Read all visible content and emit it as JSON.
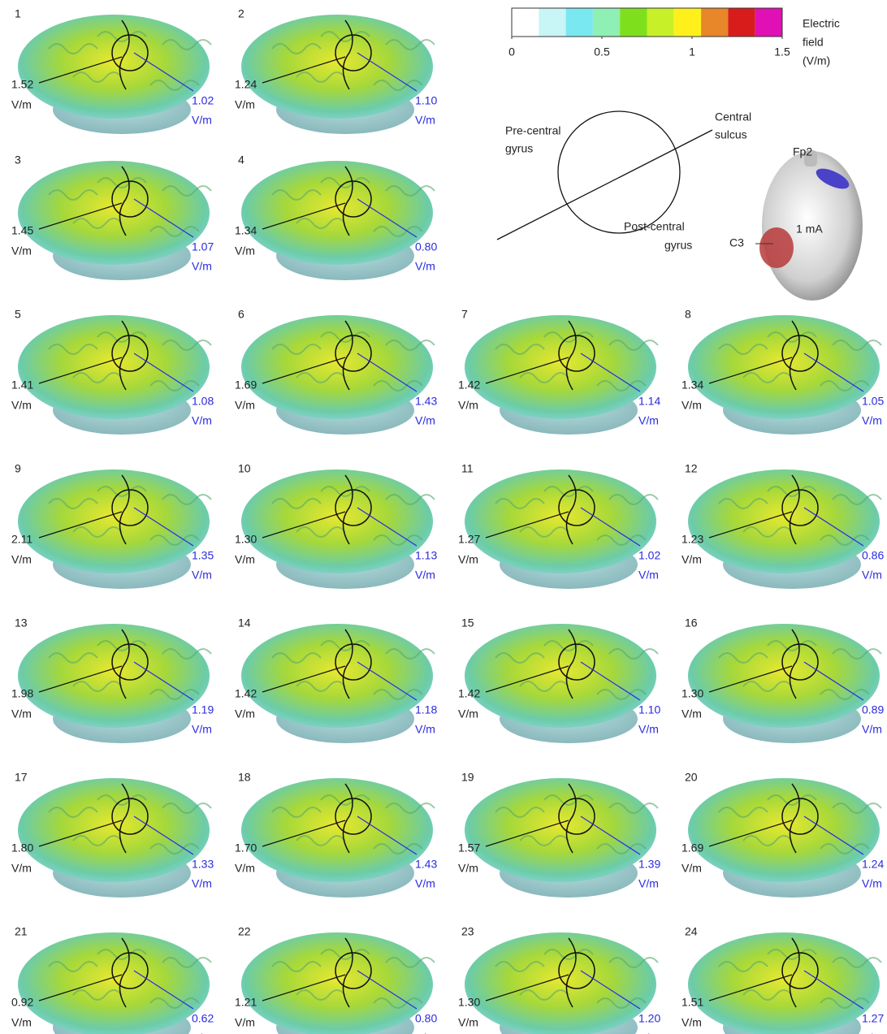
{
  "colorbar": {
    "colors": [
      "#ffffff",
      "#c8f5f5",
      "#7ae8f0",
      "#8ef0b4",
      "#7ee01c",
      "#c8f028",
      "#fff01c",
      "#e8862a",
      "#d81c1c",
      "#e010b4"
    ],
    "min": 0,
    "max": 1.5,
    "ticks": [
      0,
      0.5,
      1,
      1.5
    ],
    "label": [
      "Electric",
      "field",
      "(V/m)"
    ]
  },
  "diagram": {
    "precentral": [
      "Pre-central",
      "gyrus"
    ],
    "sulcus": [
      "Central",
      "sulcus"
    ],
    "postcentral": [
      "Post-central",
      "gyrus"
    ]
  },
  "head": {
    "anode": "Fp2",
    "cathode": "C3",
    "current": "1 mA"
  },
  "panels": [
    {
      "id": "1",
      "peak": "1.52",
      "peak_unit": "V/m",
      "roi": "1.02",
      "roi_unit": "V/m"
    },
    {
      "id": "2",
      "peak": "1.24",
      "peak_unit": "V/m",
      "roi": "1.10",
      "roi_unit": "V/m"
    },
    {
      "id": "3",
      "peak": "1.45",
      "peak_unit": "V/m",
      "roi": "1.07",
      "roi_unit": "V/m"
    },
    {
      "id": "4",
      "peak": "1.34",
      "peak_unit": "V/m",
      "roi": "0.80",
      "roi_unit": "V/m"
    },
    {
      "id": "5",
      "peak": "1.41",
      "peak_unit": "V/m",
      "roi": "1.08",
      "roi_unit": "V/m"
    },
    {
      "id": "6",
      "peak": "1.69",
      "peak_unit": "V/m",
      "roi": "1.43",
      "roi_unit": "V/m"
    },
    {
      "id": "7",
      "peak": "1.42",
      "peak_unit": "V/m",
      "roi": "1.14",
      "roi_unit": "V/m"
    },
    {
      "id": "8",
      "peak": "1.34",
      "peak_unit": "V/m",
      "roi": "1.05",
      "roi_unit": "V/m"
    },
    {
      "id": "9",
      "peak": "2.11",
      "peak_unit": "V/m",
      "roi": "1.35",
      "roi_unit": "V/m"
    },
    {
      "id": "10",
      "peak": "1.30",
      "peak_unit": "V/m",
      "roi": "1.13",
      "roi_unit": "V/m"
    },
    {
      "id": "11",
      "peak": "1.27",
      "peak_unit": "V/m",
      "roi": "1.02",
      "roi_unit": "V/m"
    },
    {
      "id": "12",
      "peak": "1.23",
      "peak_unit": "V/m",
      "roi": "0.86",
      "roi_unit": "V/m"
    },
    {
      "id": "13",
      "peak": "1.98",
      "peak_unit": "V/m",
      "roi": "1.19",
      "roi_unit": "V/m"
    },
    {
      "id": "14",
      "peak": "1.42",
      "peak_unit": "V/m",
      "roi": "1.18",
      "roi_unit": "V/m"
    },
    {
      "id": "15",
      "peak": "1.42",
      "peak_unit": "V/m",
      "roi": "1.10",
      "roi_unit": "V/m"
    },
    {
      "id": "16",
      "peak": "1.30",
      "peak_unit": "V/m",
      "roi": "0.89",
      "roi_unit": "V/m"
    },
    {
      "id": "17",
      "peak": "1.80",
      "peak_unit": "V/m",
      "roi": "1.33",
      "roi_unit": "V/m"
    },
    {
      "id": "18",
      "peak": "1.70",
      "peak_unit": "V/m",
      "roi": "1.43",
      "roi_unit": "V/m"
    },
    {
      "id": "19",
      "peak": "1.57",
      "peak_unit": "V/m",
      "roi": "1.39",
      "roi_unit": "V/m"
    },
    {
      "id": "20",
      "peak": "1.69",
      "peak_unit": "V/m",
      "roi": "1.24",
      "roi_unit": "V/m"
    },
    {
      "id": "21",
      "peak": "0.92",
      "peak_unit": "V/m",
      "roi": "0.62",
      "roi_unit": "V/m"
    },
    {
      "id": "22",
      "peak": "1.21",
      "peak_unit": "V/m",
      "roi": "0.80",
      "roi_unit": "V/m"
    },
    {
      "id": "23",
      "peak": "1.30",
      "peak_unit": "V/m",
      "roi": "1.20",
      "roi_unit": "V/m"
    },
    {
      "id": "24",
      "peak": "1.51",
      "peak_unit": "V/m",
      "roi": "1.27",
      "roi_unit": "V/m"
    }
  ]
}
